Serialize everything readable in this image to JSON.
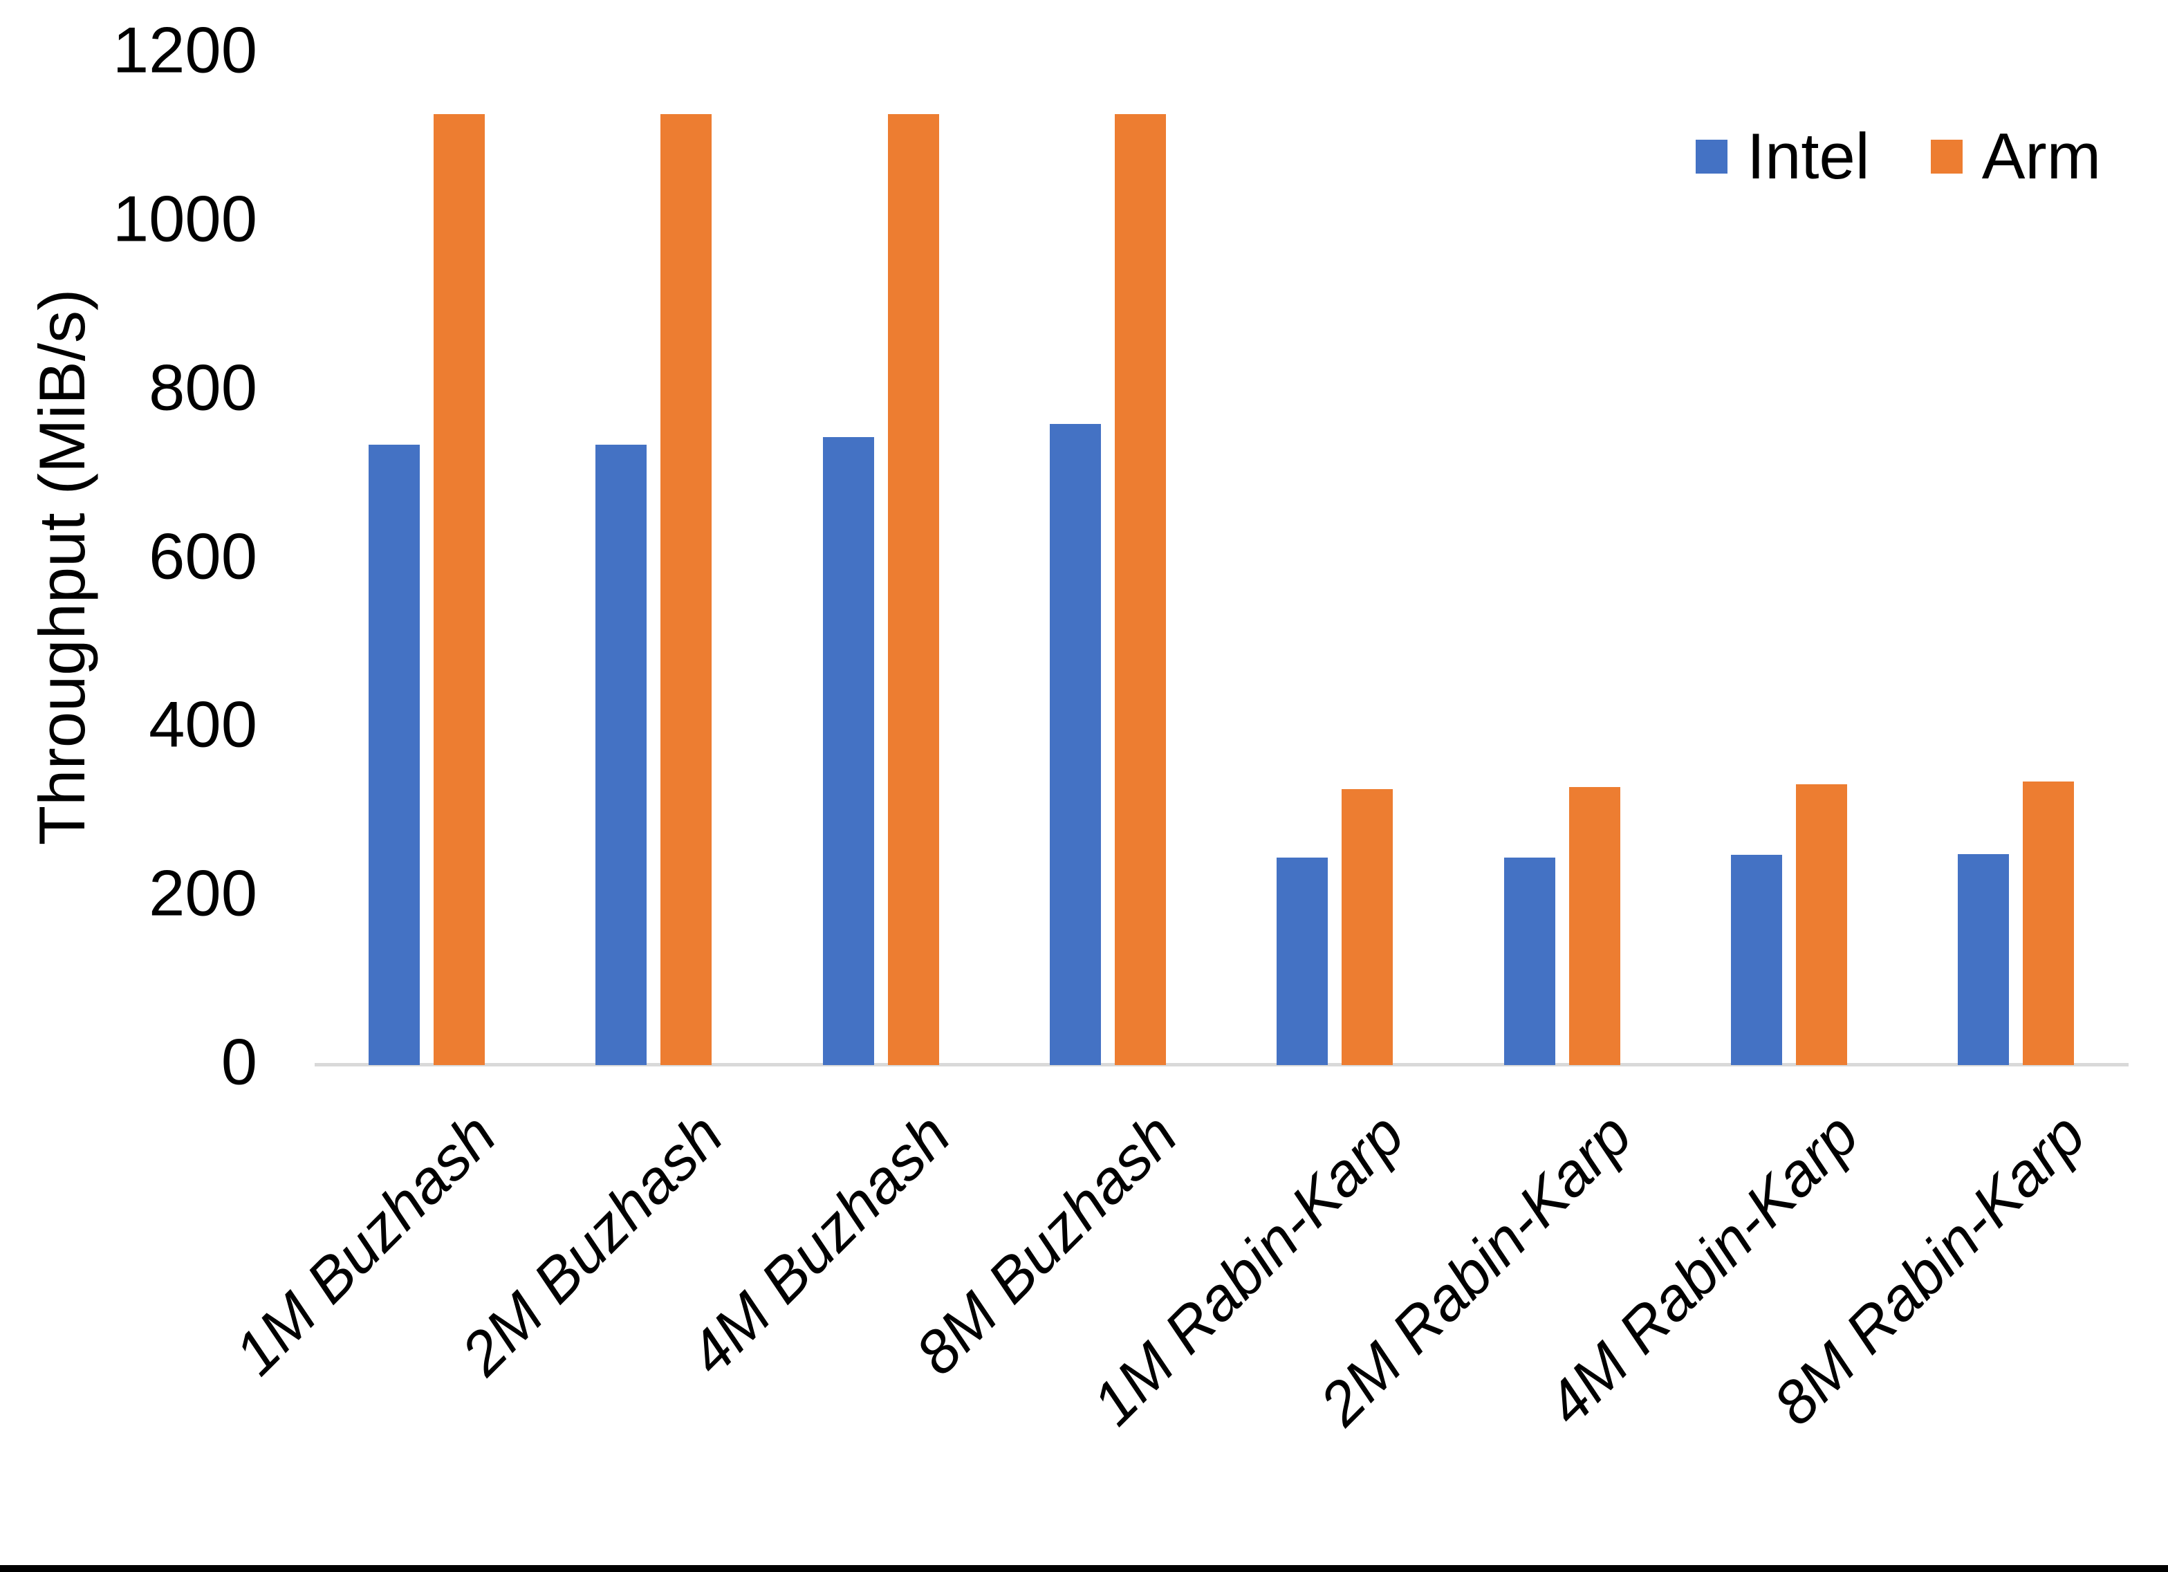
{
  "chart_data": {
    "type": "bar",
    "title": "",
    "ylabel": "Throughput (MiB/s)",
    "xlabel": "",
    "ylim": [
      0,
      1200
    ],
    "ytick_step": 200,
    "yticks": [
      0,
      200,
      400,
      600,
      800,
      1000,
      1200
    ],
    "grid": false,
    "legend_position": "top-right",
    "categories": [
      "1M Buzhash",
      "2M Buzhash",
      "4M Buzhash",
      "8M Buzhash",
      "1M Rabin-Karp",
      "2M Rabin-Karp",
      "4M Rabin-Karp",
      "8M Rabin-Karp"
    ],
    "series": [
      {
        "name": "Intel",
        "color": "#4472C4",
        "values": [
          736,
          736,
          745,
          760,
          246,
          246,
          249,
          250
        ]
      },
      {
        "name": "Arm",
        "color": "#ED7D31",
        "values": [
          1128,
          1128,
          1128,
          1128,
          327,
          330,
          333,
          336
        ]
      }
    ],
    "colors": {
      "axis_line": "#D9D9D9",
      "text": "#000000",
      "bottom_strip": "#000000"
    }
  }
}
